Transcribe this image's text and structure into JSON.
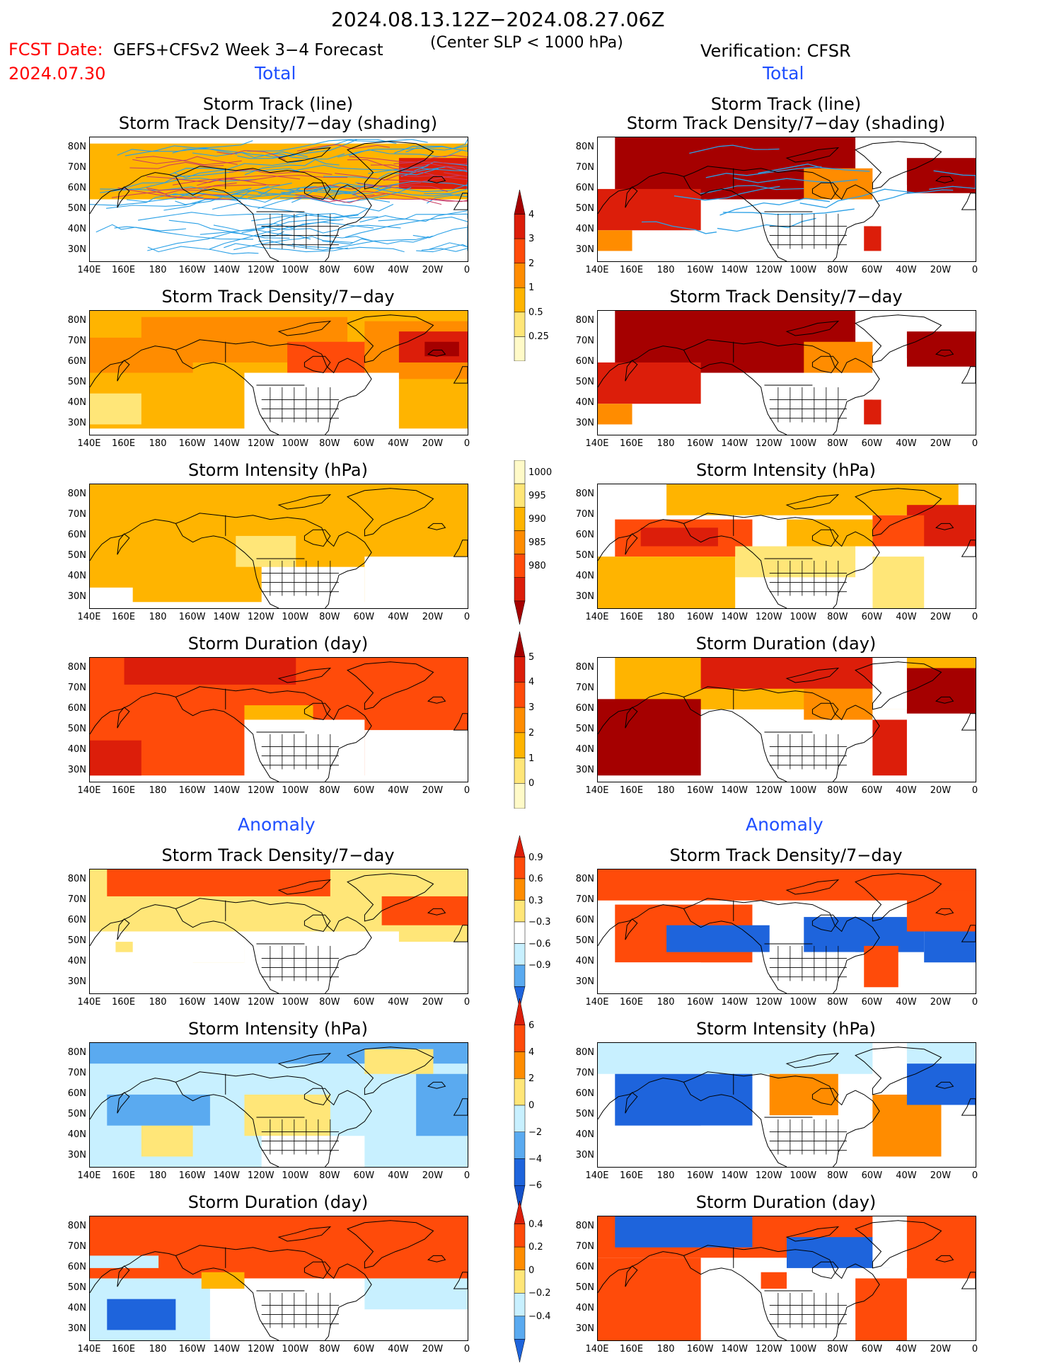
{
  "header": {
    "date_range": "2024.08.13.12Z−2024.08.27.06Z",
    "fcst_date_label": "FCST Date:",
    "fcst_date_value": "2024.07.30",
    "model": "GEFS+CFSv2 Week 3−4 Forecast",
    "criterion": "(Center SLP < 1000 hPa)",
    "verification": "Verification: CFSR"
  },
  "sections": {
    "total_left": "Total",
    "total_right": "Total",
    "anomaly_left": "Anomaly",
    "anomaly_right": "Anomaly"
  },
  "panel_titles": {
    "track_line": "Storm Track (line)",
    "track_shading": "Storm Track Density/7−day (shading)",
    "density": "Storm Track Density/7−day",
    "intensity": "Storm Intensity (hPa)",
    "duration": "Storm Duration (day)"
  },
  "axes": {
    "lat_labels": [
      "80N",
      "70N",
      "60N",
      "50N",
      "40N",
      "30N"
    ],
    "lon_labels": [
      "140E",
      "160E",
      "180",
      "160W",
      "140W",
      "120W",
      "100W",
      "80W",
      "60W",
      "40W",
      "20W",
      "0"
    ]
  },
  "colorbars": {
    "density_total": [
      "4",
      "3",
      "2",
      "1",
      "0.5",
      "0.25"
    ],
    "intensity_total": [
      "1000",
      "995",
      "990",
      "985",
      "980"
    ],
    "duration_total": [
      "5",
      "4",
      "3",
      "2",
      "1",
      "0"
    ],
    "density_anom": [
      "0.9",
      "0.6",
      "0.3",
      "−0.3",
      "−0.6",
      "−0.9"
    ],
    "intensity_anom": [
      "6",
      "4",
      "2",
      "0",
      "−2",
      "−4",
      "−6"
    ],
    "duration_anom": [
      "0.4",
      "0.2",
      "0",
      "−0.2",
      "−0.4"
    ]
  },
  "colors": {
    "dark_red": "#a50000",
    "red": "#dc1e0a",
    "orange_red": "#ff4b0a",
    "orange": "#ff8c00",
    "light_orange": "#ffb400",
    "yellow": "#ffe678",
    "pale_yellow": "#fffac8",
    "light_blue": "#c8f0ff",
    "mid_blue": "#5aaaf0",
    "blue": "#1e64dc",
    "track_blue": "#2aa0e6"
  }
}
